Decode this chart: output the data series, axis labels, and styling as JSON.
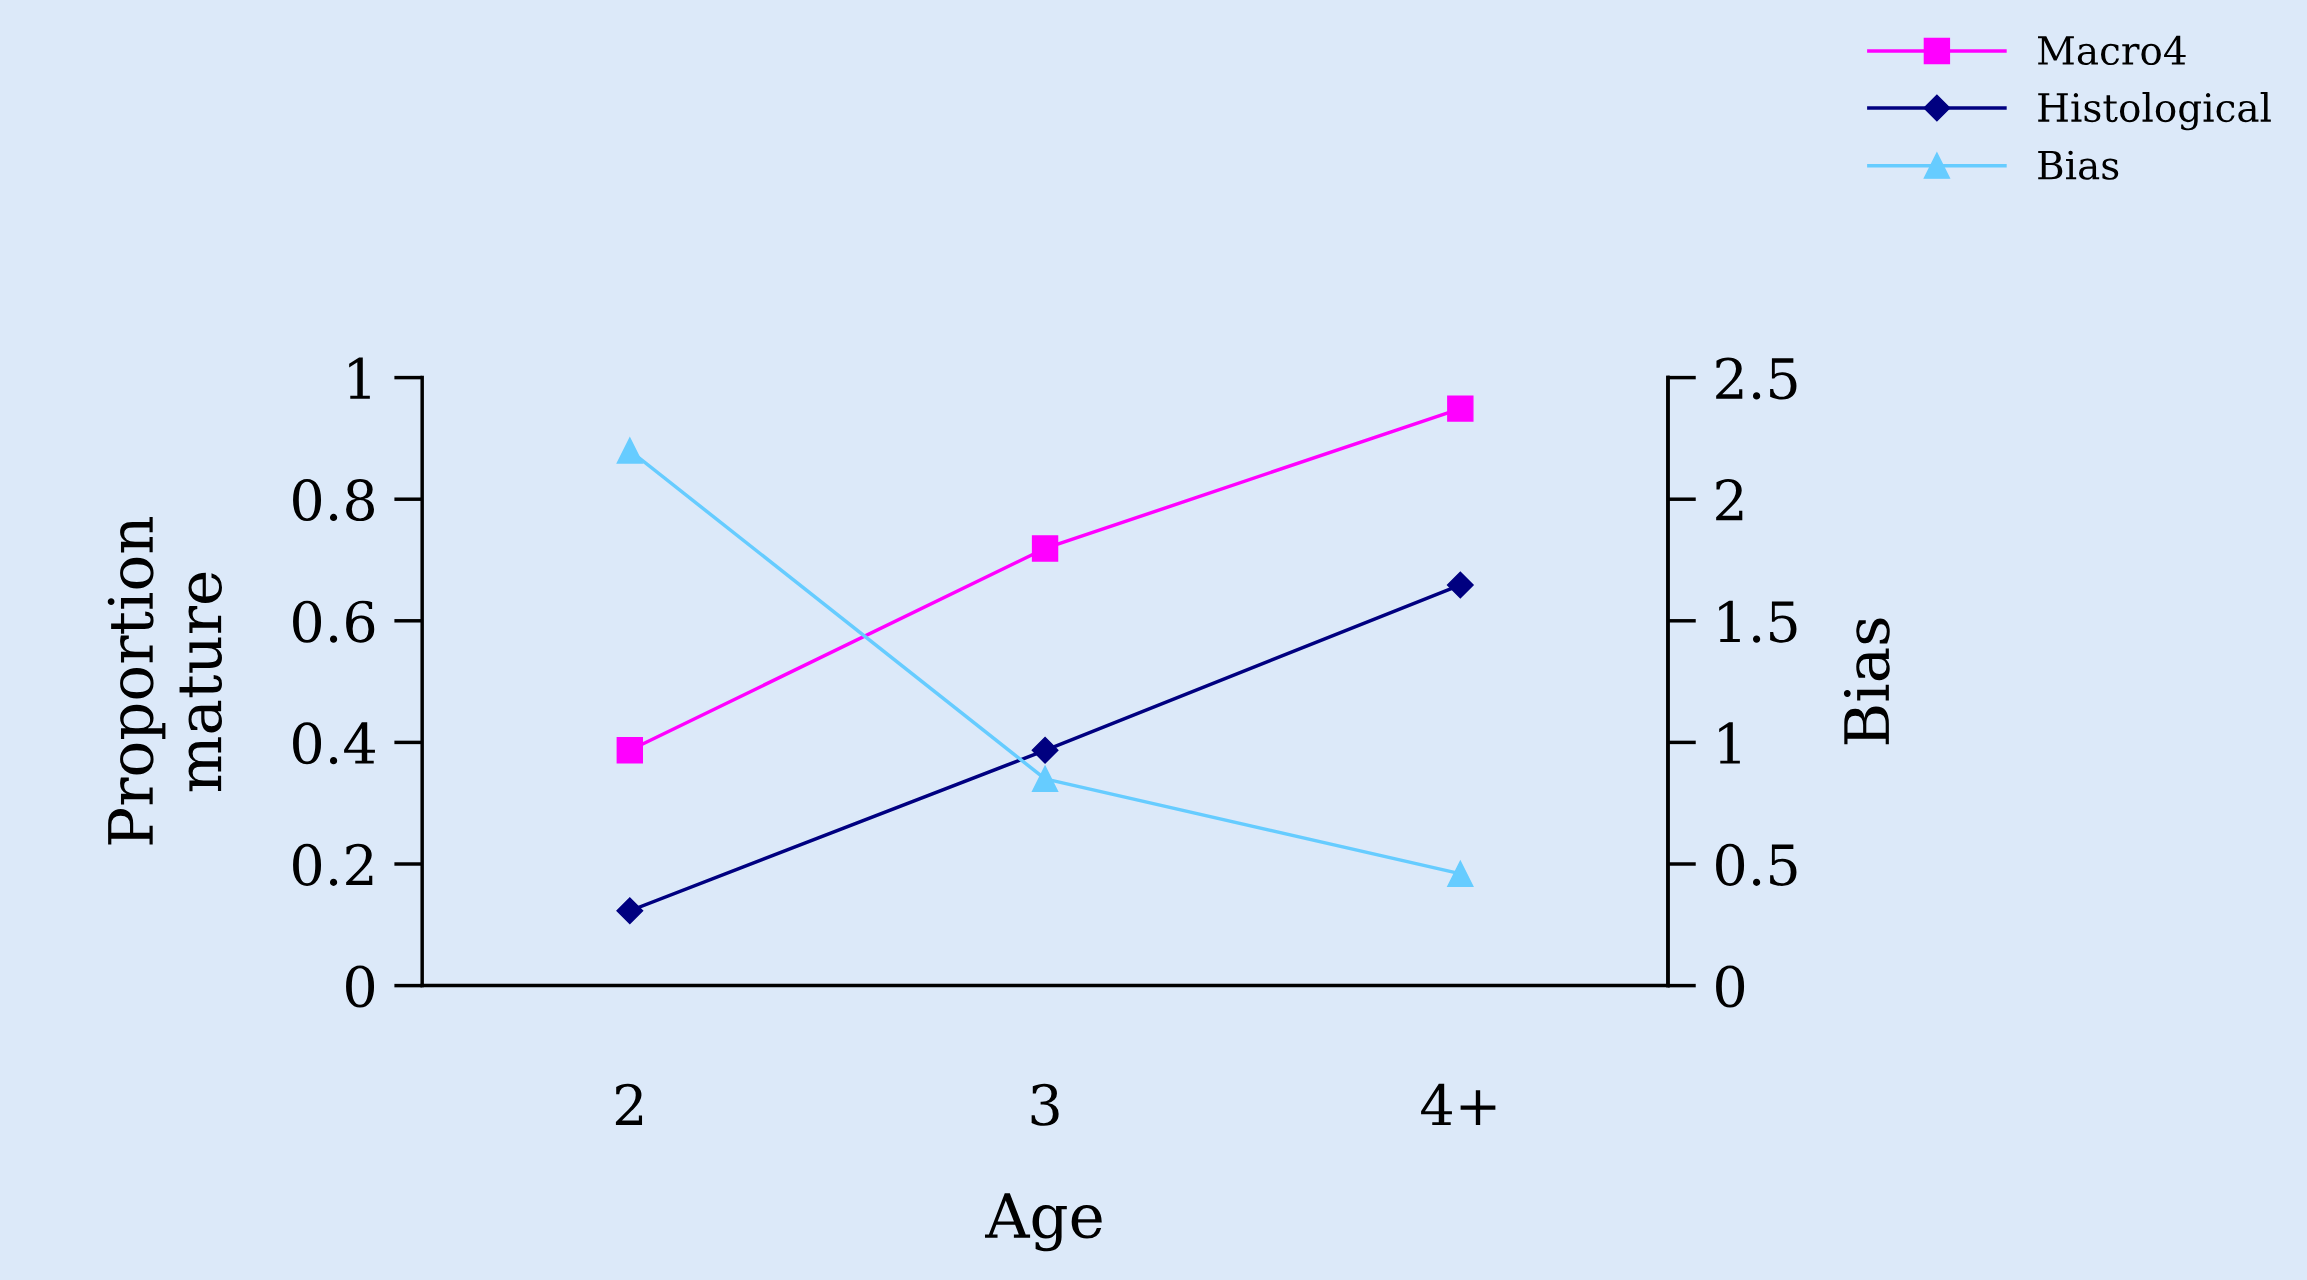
{
  "chart_data": {
    "type": "line",
    "xlabel": "Age",
    "ylabel": "Proportion\nmature",
    "y2label": "Bias",
    "categories": [
      "2",
      "3",
      "4+"
    ],
    "series": [
      {
        "name": "Macro4",
        "color": "#ff00ff",
        "marker": "square",
        "values": [
          0.387,
          0.719,
          0.949
        ]
      },
      {
        "name": "Histological",
        "color": "#000080",
        "marker": "diamond",
        "values": [
          0.123,
          0.387,
          0.659
        ]
      },
      {
        "name": "Bias",
        "color": "#66ccff",
        "marker": "triangle",
        "axis": "y2",
        "values": [
          2.2,
          0.85,
          0.46
        ]
      }
    ],
    "ylim": [
      0,
      1
    ],
    "yticks": [
      0,
      0.2,
      0.4,
      0.6,
      0.8,
      1
    ],
    "y2lim": [
      0,
      2.5
    ],
    "y2ticks": [
      0,
      0.5,
      1,
      1.5,
      2,
      2.5
    ],
    "grid": false,
    "legend": "top right",
    "line_style": "solid"
  }
}
